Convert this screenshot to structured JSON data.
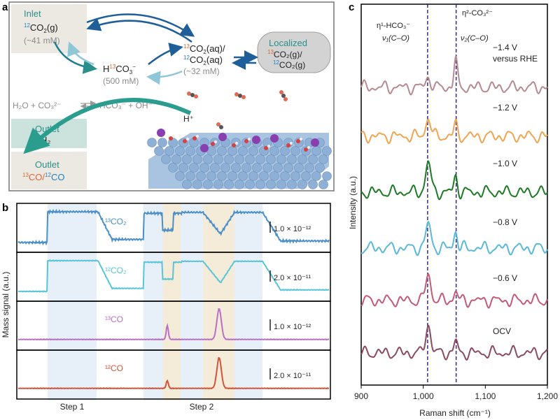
{
  "panel_labels": {
    "a": "a",
    "b": "b",
    "c": "c"
  },
  "panel_a": {
    "inlet": {
      "title": "Inlet",
      "species_pre": "12",
      "species": "CO",
      "species_sub": "2",
      "species_post": "(g)",
      "conc": "(~41 mM)"
    },
    "bicarb": {
      "pre": "H",
      "iso": "13",
      "species": "CO",
      "sub": "3",
      "charge": "−",
      "conc": "(500 mM)"
    },
    "aqueous": {
      "line1_iso": "13",
      "line1": "CO",
      "line1_sub": "2",
      "line1_post": "(aq)/",
      "line2_iso": "12",
      "line2": "CO",
      "line2_sub": "2",
      "line2_post": "(aq)",
      "conc": "(~32 mM)"
    },
    "localized": {
      "title": "Localized",
      "line1_iso": "13",
      "line1_post": "CO₂(g)/",
      "line2_iso": "12",
      "line2_post": "CO₂(g)"
    },
    "equilibrium": {
      "left": "H₂O + CO₃²⁻",
      "right": "HCO₃⁻ + OH⁻"
    },
    "proton": "H⁺",
    "outlet_h2": {
      "title": "Outlet",
      "species": "H₂"
    },
    "outlet_co": {
      "title": "Outlet",
      "iso1": "13",
      "mid": "CO/",
      "iso2": "12",
      "end": "CO"
    },
    "colors": {
      "teal": "#2a8f8c",
      "blue": "#1f5f99",
      "orange": "#e0662e",
      "grey": "#8c8c8c"
    }
  },
  "panel_b": {
    "ylabel": "Mass signal (a.u.)",
    "steps": [
      "Step 1",
      "Step 2"
    ],
    "chart_data": {
      "type": "line",
      "series": [
        {
          "name": "¹³CO₂",
          "color": "#4a8fc9",
          "scale": "1.0 × 10⁻¹²"
        },
        {
          "name": "¹²CO₂",
          "color": "#58c5d8",
          "scale": "2.0 × 10⁻¹¹"
        },
        {
          "name": "¹³CO",
          "color": "#b970c4",
          "scale": "1.0 × 10⁻¹²"
        },
        {
          "name": "¹²CO",
          "color": "#d0553a",
          "scale": "2.0 × 10⁻¹¹"
        }
      ]
    }
  },
  "panel_c": {
    "xlabel": "Raman shift (cm⁻¹)",
    "ylabel": "Intensity (a.u.)",
    "xticks": [
      "900",
      "1,000",
      "1,100",
      "1,200"
    ],
    "xlim": [
      900,
      1200
    ],
    "peak1": {
      "line1": "η¹-HCO₃⁻",
      "line2": "ν₁(C–O)",
      "position": 1007
    },
    "peak2": {
      "line1": "η²-CO₃²⁻",
      "line2": "ν₂(C–O)",
      "position": 1053
    },
    "chart_data": {
      "type": "line",
      "series": [
        {
          "name": "−1.4 V",
          "extra": "versus RHE",
          "color": "#b58a90"
        },
        {
          "name": "−1.2 V",
          "color": "#f0a550"
        },
        {
          "name": "−1.0 V",
          "color": "#1e7a24"
        },
        {
          "name": "−0.8 V",
          "color": "#5ab8d8"
        },
        {
          "name": "−0.6 V",
          "color": "#c25a78"
        },
        {
          "name": "OCV",
          "color": "#8a4a62"
        }
      ]
    }
  }
}
